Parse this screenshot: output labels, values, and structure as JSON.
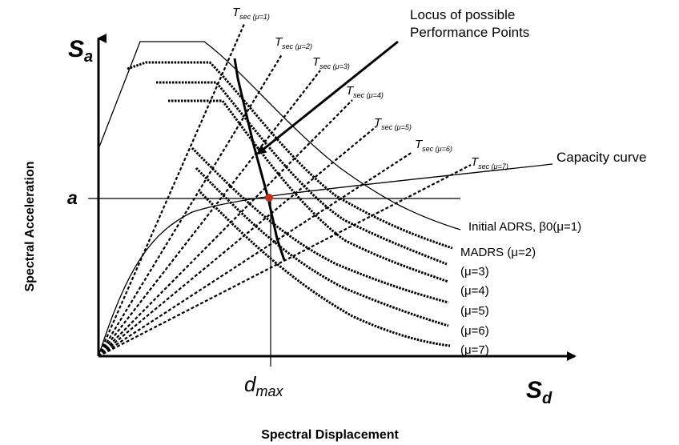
{
  "axes": {
    "y_symbol_base": "S",
    "y_symbol_sub": "a",
    "x_symbol_base": "S",
    "x_symbol_sub": "d",
    "y_title": "Spectral Acceleration",
    "x_title": "Spectral Displacement",
    "a_marker": "a",
    "dmax_base": "d",
    "dmax_sub": "max"
  },
  "annotations": {
    "locus_line1": "Locus of possible",
    "locus_line2": "Performance Points",
    "capacity_curve": "Capacity curve"
  },
  "secant_labels": [
    {
      "t": "T",
      "sub": "sec (μ=1)"
    },
    {
      "t": "T",
      "sub": "sec (μ=2)"
    },
    {
      "t": "T",
      "sub": "sec (μ=3)"
    },
    {
      "t": "T",
      "sub": "sec (μ=4)"
    },
    {
      "t": "T",
      "sub": "sec (μ=5)"
    },
    {
      "t": "T",
      "sub": "sec (μ=6)"
    },
    {
      "t": "T",
      "sub": "sec (μ=7)"
    }
  ],
  "demand_labels": [
    "Initial ADRS, β0(μ=1)",
    "MADRS (μ=2)",
    "(μ=3)",
    "(μ=4)",
    "(μ=5)",
    "(μ=6)",
    "(μ=7)"
  ],
  "colors": {
    "ink": "#000000",
    "performance_point": "#c0301a"
  }
}
